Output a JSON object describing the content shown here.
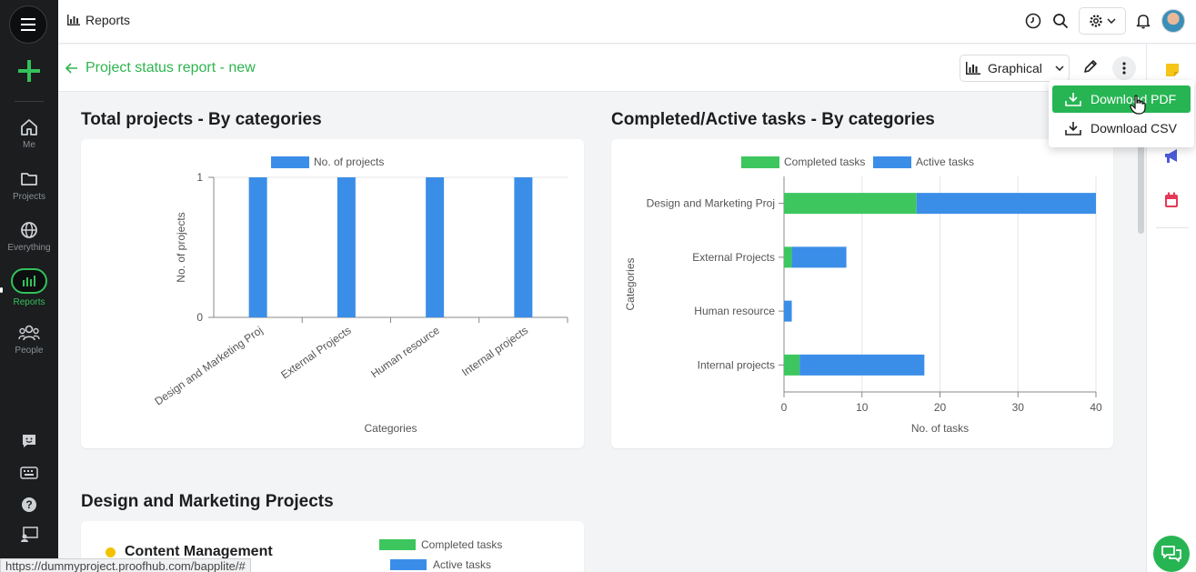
{
  "nav": {
    "items": [
      {
        "label": "Me",
        "icon": "home-icon"
      },
      {
        "label": "Projects",
        "icon": "folder-icon"
      },
      {
        "label": "Everything",
        "icon": "globe-icon"
      },
      {
        "label": "Reports",
        "icon": "reports-icon"
      },
      {
        "label": "People",
        "icon": "people-icon"
      }
    ]
  },
  "topbar": {
    "title": "Reports"
  },
  "subheader": {
    "back_title": "Project status report - new",
    "view_selector": "Graphical"
  },
  "dropdown": {
    "items": [
      {
        "label": "Download PDF",
        "icon": "download-icon"
      },
      {
        "label": "Download CSV",
        "icon": "download-icon"
      }
    ]
  },
  "sections": {
    "total_projects_title": "Total projects - By categories",
    "tasks_title": "Completed/Active tasks - By categories",
    "design_title": "Design and Marketing Projects"
  },
  "design_project": {
    "name": "Content Management",
    "legend": [
      "Completed tasks",
      "Active tasks"
    ]
  },
  "status_url": "https://dummyproject.proofhub.com/bapplite/#",
  "colors": {
    "green": "#2db54f",
    "blue": "#3b8ee8",
    "completed": "#3dc65e",
    "active": "#3b8ee8"
  },
  "chart_data": [
    {
      "type": "bar",
      "title": "Total projects - By categories",
      "categories": [
        "Design and Marketing Proj",
        "External Projects",
        "Human resource",
        "Internal projects"
      ],
      "series": [
        {
          "name": "No. of projects",
          "values": [
            1,
            1,
            1,
            1
          ]
        }
      ],
      "xlabel": "Categories",
      "ylabel": "No. of projects",
      "ylim": [
        0,
        1
      ],
      "yticks": [
        "0",
        "1"
      ],
      "legend": "top"
    },
    {
      "type": "bar",
      "orientation": "horizontal",
      "stacked": true,
      "title": "Completed/Active tasks - By categories",
      "categories": [
        "Design and Marketing Proj",
        "External Projects",
        "Human resource",
        "Internal projects"
      ],
      "series": [
        {
          "name": "Completed tasks",
          "values": [
            17,
            1,
            0,
            2
          ]
        },
        {
          "name": "Active tasks",
          "values": [
            23,
            7,
            1,
            16
          ]
        }
      ],
      "xlabel": "No. of tasks",
      "ylabel": "Categories",
      "xlim": [
        0,
        40
      ],
      "xticks": [
        "0",
        "10",
        "20",
        "30",
        "40"
      ],
      "legend": "top"
    }
  ]
}
